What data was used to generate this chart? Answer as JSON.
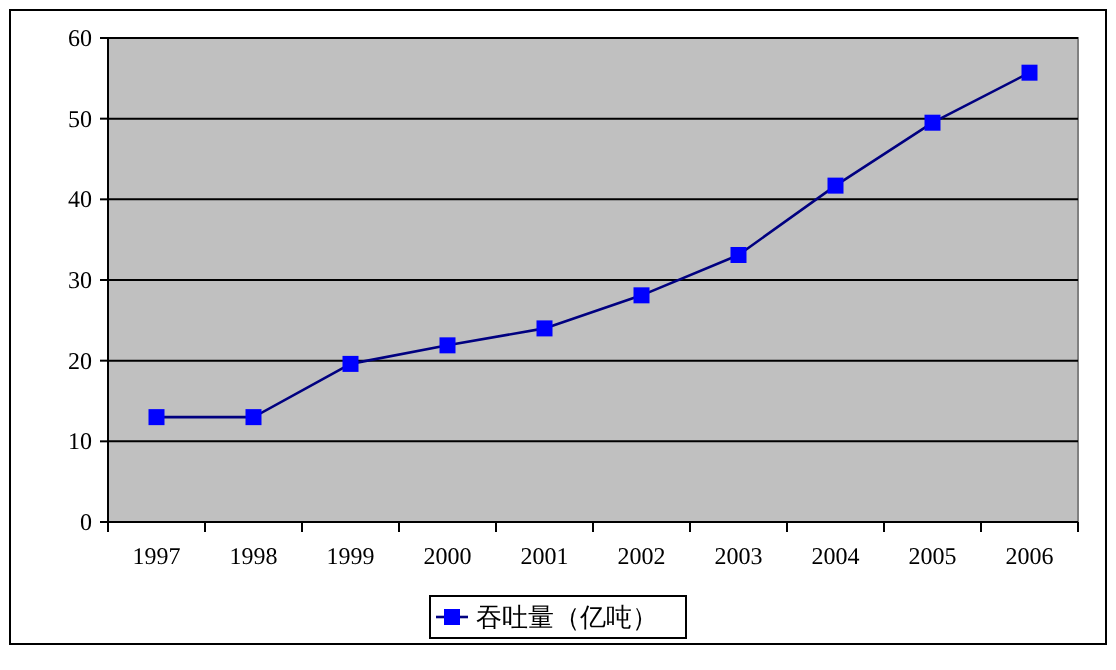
{
  "chart_data": {
    "type": "line",
    "categories": [
      "1997",
      "1998",
      "1999",
      "2000",
      "2001",
      "2002",
      "2003",
      "2004",
      "2005",
      "2006"
    ],
    "series": [
      {
        "name": "吞吐量（亿吨）",
        "color": "#000080",
        "values": [
          13,
          13,
          19.6,
          21.9,
          24,
          28.1,
          33.1,
          41.7,
          49.5,
          55.7
        ]
      }
    ],
    "ylim": [
      0,
      60
    ],
    "yticks": [
      0,
      10,
      20,
      30,
      40,
      50,
      60
    ],
    "grid": "y",
    "legend": "bottom",
    "marker": "square",
    "line_style": "solid"
  }
}
